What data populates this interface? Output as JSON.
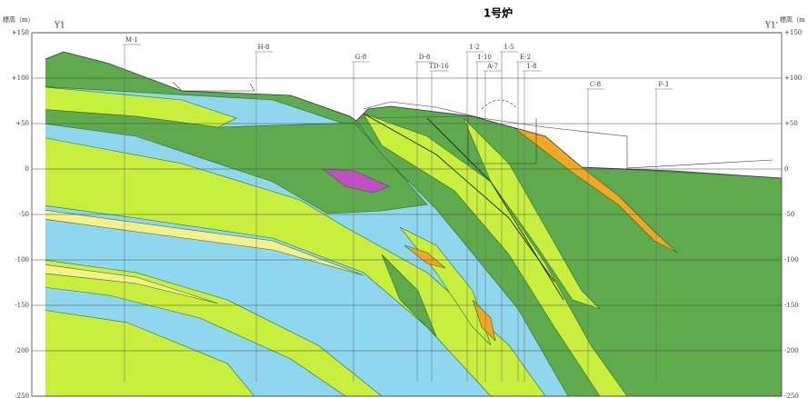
{
  "title": "1号炉",
  "axis_label_left": "標高（m）",
  "axis_label_right": "標高（m",
  "section_start": "Y1",
  "section_end": "Y1'",
  "elevation_ticks": [
    "+150",
    "+100",
    "+50",
    "0",
    "-50",
    "-100",
    "-150",
    "-200",
    "-250"
  ],
  "boreholes": [
    {
      "label": "M-1"
    },
    {
      "label": "H-8"
    },
    {
      "label": "G-8"
    },
    {
      "label": "D-8"
    },
    {
      "label": "TD-16"
    },
    {
      "label": "1-2"
    },
    {
      "label": "1-10"
    },
    {
      "label": "A-7"
    },
    {
      "label": "1-5"
    },
    {
      "label": "E-2"
    },
    {
      "label": "1-8"
    },
    {
      "label": "C-8"
    },
    {
      "label": "F-3"
    }
  ]
}
